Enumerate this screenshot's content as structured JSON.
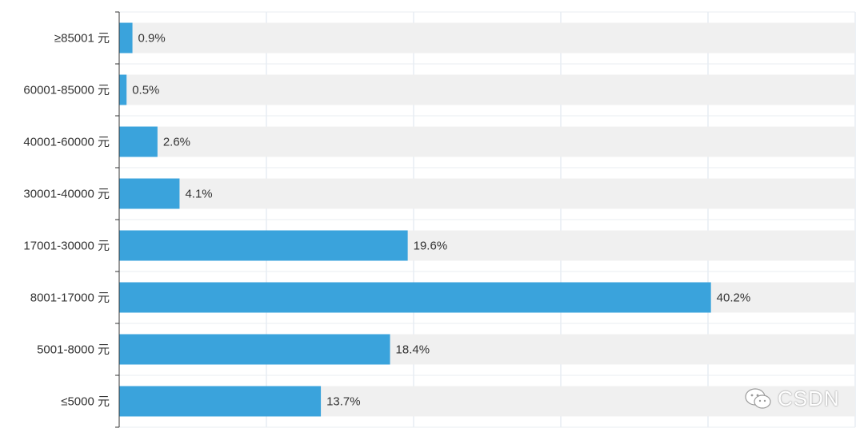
{
  "chart_data": {
    "type": "bar",
    "orientation": "horizontal",
    "title": "",
    "xlabel": "",
    "ylabel": "",
    "categories": [
      "≥85001 元",
      "60001-85000 元",
      "40001-60000 元",
      "30001-40000 元",
      "17001-30000 元",
      "8001-17000 元",
      "5001-8000 元",
      "≤5000 元"
    ],
    "values": [
      0.9,
      0.5,
      2.6,
      4.1,
      19.6,
      40.2,
      18.4,
      13.7
    ],
    "value_labels": [
      "0.9%",
      "0.5%",
      "2.6%",
      "4.1%",
      "19.6%",
      "40.2%",
      "18.4%",
      "13.7%"
    ],
    "xlim": [
      0,
      50
    ],
    "grid": true,
    "bar_color": "#3aa3dc",
    "track_color": "#f0f0f0"
  },
  "watermark": {
    "text": "CSDN",
    "icon": "wechat-icon"
  }
}
